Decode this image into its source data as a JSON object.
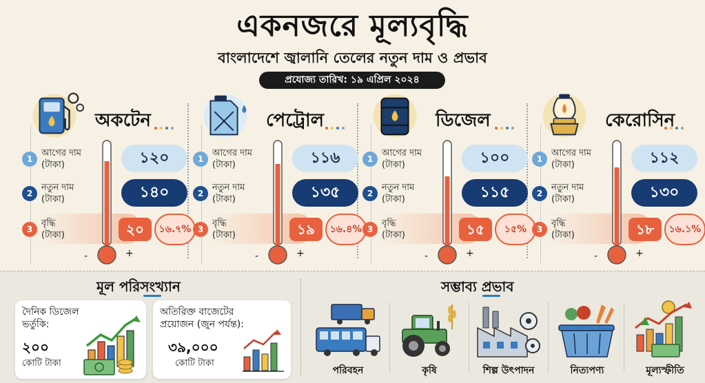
{
  "header": {
    "title": "একনজরে মূল্যবৃদ্ধি",
    "subtitle": "বাংলাদেশে জ্বালানি তেলের নতুন দাম ও প্রভাব",
    "date_label": "প্রযোজ্য তারিখ: ১৯ এপ্রিল ২০২৪"
  },
  "row_labels": {
    "old": "আগের দাম\n(টাকা)",
    "new": "নতুন দাম\n(টাকা)",
    "inc": "বৃদ্ধি\n(টাকা)"
  },
  "step_numbers": [
    "1",
    "2",
    "3"
  ],
  "fuels": [
    {
      "name": "অকটেন",
      "icon": "fuel-pump-icon",
      "old_price": "১২০",
      "new_price": "১৪০",
      "increase": "২০",
      "percent": "১৬.৭%",
      "old_value": 120,
      "new_value": 140,
      "increase_value": 20
    },
    {
      "name": "পেট্রোল",
      "icon": "jerrycan-icon",
      "old_price": "১১৬",
      "new_price": "১৩৫",
      "increase": "১৯",
      "percent": "১৬.৪%",
      "old_value": 116,
      "new_value": 135,
      "increase_value": 19
    },
    {
      "name": "ডিজেল",
      "icon": "oil-barrel-icon",
      "old_price": "১০০",
      "new_price": "১১৫",
      "increase": "১৫",
      "percent": "১৫%",
      "old_value": 100,
      "new_value": 115,
      "increase_value": 15
    },
    {
      "name": "কেরোসিন",
      "icon": "kerosene-lamp-icon",
      "old_price": "১১২",
      "new_price": "১৩০",
      "increase": "১৮",
      "percent": "১৬.১%",
      "old_value": 112,
      "new_value": 130,
      "increase_value": 18
    }
  ],
  "thermo_marks": {
    "minus": "-",
    "plus": "+"
  },
  "stats": {
    "title": "মূল পরিসংখ্যান",
    "cards": [
      {
        "label": "দৈনিক ডিজেল\nভর্তুকি:",
        "value": "২০০",
        "unit": "কোটি টাকা",
        "icon": "money-growth-chart-icon"
      },
      {
        "label": "অতিরিক্ত বাজেটের\nপ্রয়োজন (জুন পর্যন্ত):",
        "value": "৩৯,০০০",
        "unit": "কোটি টাকা",
        "icon": "bar-chart-trend-icon"
      }
    ]
  },
  "impacts": {
    "title": "সম্ভাব্য প্রভাব",
    "items": [
      {
        "label": "পরিবহন",
        "icon": "transport-icon"
      },
      {
        "label": "কৃষি",
        "icon": "tractor-icon"
      },
      {
        "label": "শিল্প উৎপাদন",
        "icon": "factory-icon"
      },
      {
        "label": "নিত্যপণ্য",
        "icon": "grocery-basket-icon"
      },
      {
        "label": "মূল্যস্ফীতি",
        "icon": "inflation-chart-icon"
      }
    ]
  },
  "colors": {
    "background": "#f6f1e4",
    "navy": "#173b73",
    "light_blue": "#cfe3f2",
    "orange_red": "#e8613f",
    "step1": "#6ea8d8",
    "step2": "#1f4f8f",
    "step3": "#e8613f"
  }
}
